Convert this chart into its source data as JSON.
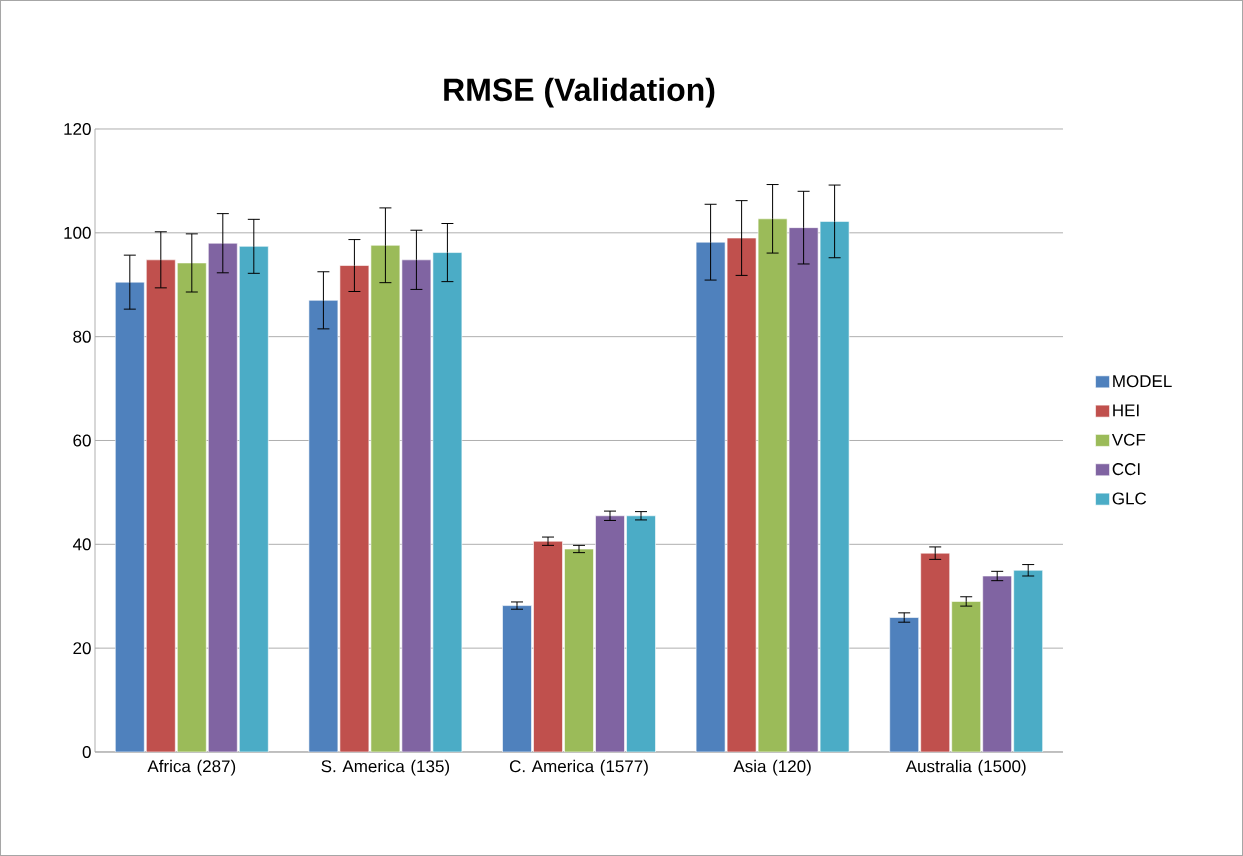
{
  "chart_data": {
    "type": "bar",
    "title": "RMSE (Validation)",
    "categories": [
      "Africa (287)",
      "S. America (135)",
      "C. America (1577)",
      "Asia (120)",
      "Australia (1500)"
    ],
    "series": [
      {
        "name": "MODEL",
        "color": "#4f81bd",
        "values": [
          90.5,
          87,
          28.2,
          98.2,
          25.9
        ],
        "errors": [
          5.2,
          5.5,
          0.7,
          7.3,
          0.9
        ]
      },
      {
        "name": "HEI",
        "color": "#c0504d",
        "values": [
          94.8,
          93.7,
          40.6,
          99,
          38.3
        ],
        "errors": [
          5.4,
          5,
          0.8,
          7.2,
          1.2
        ]
      },
      {
        "name": "VCF",
        "color": "#9bbb59",
        "values": [
          94.2,
          97.6,
          39.1,
          102.7,
          29
        ],
        "errors": [
          5.6,
          7.2,
          0.7,
          6.6,
          0.9
        ]
      },
      {
        "name": "CCI",
        "color": "#8064a2",
        "values": [
          98,
          94.8,
          45.5,
          101,
          33.9
        ],
        "errors": [
          5.7,
          5.7,
          0.9,
          7,
          0.9
        ]
      },
      {
        "name": "GLC",
        "color": "#4bacc6",
        "values": [
          97.4,
          96.2,
          45.5,
          102.2,
          35
        ],
        "errors": [
          5.2,
          5.6,
          0.8,
          7,
          1.1
        ]
      }
    ],
    "ylim": [
      0,
      120
    ],
    "yticks": [
      0,
      20,
      40,
      60,
      80,
      100,
      120
    ],
    "grid": "y",
    "legend": "right"
  }
}
